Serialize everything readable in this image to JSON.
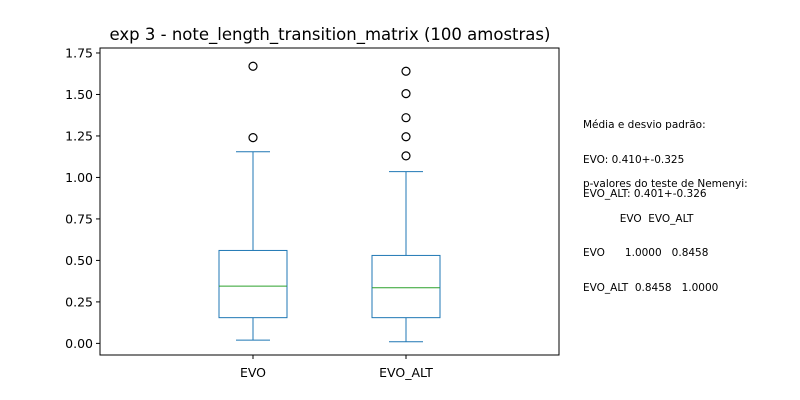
{
  "chart_data": {
    "type": "box",
    "title": "exp 3 - note_length_transition_matrix (100 amostras)",
    "xlabel": "",
    "ylabel": "",
    "ylim": [
      -0.07,
      1.78
    ],
    "yticks": [
      0.0,
      0.25,
      0.5,
      0.75,
      1.0,
      1.25,
      1.5,
      1.75
    ],
    "ytick_labels": [
      "0.00",
      "0.25",
      "0.50",
      "0.75",
      "1.00",
      "1.25",
      "1.50",
      "1.75"
    ],
    "categories": [
      "EVO",
      "EVO_ALT"
    ],
    "boxes": [
      {
        "name": "EVO",
        "whisker_low": 0.02,
        "q1": 0.155,
        "median": 0.345,
        "q3": 0.56,
        "whisker_high": 1.155,
        "outliers": [
          1.24,
          1.67
        ]
      },
      {
        "name": "EVO_ALT",
        "whisker_low": 0.01,
        "q1": 0.155,
        "median": 0.335,
        "q3": 0.53,
        "whisker_high": 1.035,
        "outliers": [
          1.13,
          1.245,
          1.36,
          1.505,
          1.64
        ]
      }
    ],
    "grid": false,
    "colors": {
      "box": "#1f77b4",
      "median": "#2ca02c",
      "outlier": "#000000"
    }
  },
  "stats_text": {
    "mean_title": "Média e desvio padrão:",
    "mean_lines": [
      "EVO: 0.410+-0.325",
      "EVO_ALT: 0.401+-0.326"
    ],
    "nemenyi_title": "p-valores do teste de Nemenyi:",
    "nemenyi_lines": [
      "           EVO  EVO_ALT",
      "EVO      1.0000   0.8458",
      "EVO_ALT  0.8458   1.0000"
    ]
  }
}
